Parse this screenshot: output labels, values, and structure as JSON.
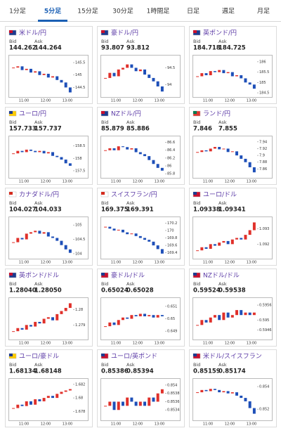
{
  "tabs": [
    "1分足",
    "5分足",
    "15分足",
    "30分足",
    "1時間足",
    "日足",
    "週足",
    "月足"
  ],
  "active_tab": 1,
  "labels": {
    "bid": "Bid",
    "ask": "Ask"
  },
  "time_labels": [
    "11:00",
    "12:00",
    "13:00"
  ],
  "cards": [
    {
      "pair": "米ドル/円",
      "bid": "144.262",
      "ask": "144.264",
      "chart": {
        "ylim": [
          144.2,
          145.7
        ],
        "yticks": [
          145.5,
          145,
          144.5
        ],
        "values": [
          145.3,
          145.35,
          145.2,
          145.25,
          145.1,
          145.15,
          145.0,
          145.05,
          144.9,
          144.95,
          144.8,
          144.7,
          144.5,
          144.3
        ]
      }
    },
    {
      "pair": "豪ドル/円",
      "bid": "93.807",
      "ask": "93.812",
      "chart": {
        "ylim": [
          93.7,
          94.8
        ],
        "yticks": [
          94.5,
          94
        ],
        "values": [
          94.2,
          94.35,
          94.25,
          94.45,
          94.5,
          94.6,
          94.5,
          94.4,
          94.45,
          94.3,
          94.2,
          94.1,
          93.95,
          93.8
        ]
      }
    },
    {
      "pair": "英ポンド/円",
      "bid": "184.718",
      "ask": "184.725",
      "chart": {
        "ylim": [
          184.4,
          186.2
        ],
        "yticks": [
          186,
          185.5,
          185,
          184.5
        ],
        "values": [
          185.3,
          185.45,
          185.35,
          185.55,
          185.5,
          185.6,
          185.45,
          185.5,
          185.3,
          185.35,
          185.2,
          185.0,
          184.9,
          184.7
        ]
      }
    },
    {
      "pair": "ユーロ/円",
      "bid": "157.733",
      "ask": "157.737",
      "chart": {
        "ylim": [
          157.3,
          158.8
        ],
        "yticks": [
          158.5,
          158,
          157.5
        ],
        "values": [
          158.2,
          158.3,
          158.25,
          158.35,
          158.3,
          158.25,
          158.3,
          158.2,
          158.25,
          158.1,
          158.05,
          157.95,
          157.8,
          157.7
        ]
      }
    },
    {
      "pair": "NZドル/円",
      "bid": "85.879",
      "ask": "85.886",
      "chart": {
        "ylim": [
          85.75,
          86.7
        ],
        "yticks": [
          86.6,
          86.4,
          86.2,
          86,
          85.8
        ],
        "values": [
          86.4,
          86.45,
          86.4,
          86.5,
          86.48,
          86.42,
          86.45,
          86.35,
          86.3,
          86.25,
          86.15,
          86.05,
          85.95,
          85.88
        ]
      }
    },
    {
      "pair": "ランド/円",
      "bid": "7.846",
      "ask": "7.855",
      "chart": {
        "ylim": [
          7.84,
          7.95
        ],
        "yticks": [
          7.94,
          7.92,
          7.9,
          7.88,
          7.86
        ],
        "values": [
          7.91,
          7.915,
          7.912,
          7.92,
          7.925,
          7.918,
          7.92,
          7.91,
          7.912,
          7.9,
          7.89,
          7.88,
          7.865,
          7.85
        ]
      }
    },
    {
      "pair": "カナダドル/円",
      "bid": "104.027",
      "ask": "104.033",
      "chart": {
        "ylim": [
          103.9,
          105.2
        ],
        "yticks": [
          105,
          104.5,
          104
        ],
        "values": [
          104.4,
          104.55,
          104.5,
          104.7,
          104.75,
          104.8,
          104.7,
          104.75,
          104.6,
          104.55,
          104.45,
          104.3,
          104.15,
          104.03
        ]
      }
    },
    {
      "pair": "スイスフラン/円",
      "bid": "169.375",
      "ask": "169.391",
      "chart": {
        "ylim": [
          169.3,
          170.3
        ],
        "yticks": [
          170.2,
          170,
          169.8,
          169.6,
          169.4
        ],
        "values": [
          170.1,
          170.05,
          170.0,
          170.02,
          169.95,
          169.9,
          169.92,
          169.85,
          169.8,
          169.75,
          169.7,
          169.6,
          169.5,
          169.38
        ]
      }
    },
    {
      "pair": "ユーロ/ドル",
      "bid": "1.09338",
      "ask": "1.09341",
      "chart": {
        "ylim": [
          1.0912,
          1.0936
        ],
        "yticks": [
          1.093,
          1.092
        ],
        "values": [
          1.0916,
          1.0918,
          1.0917,
          1.092,
          1.0919,
          1.0921,
          1.0922,
          1.092,
          1.0923,
          1.0924,
          1.0923,
          1.0926,
          1.0929,
          1.0934
        ]
      }
    },
    {
      "pair": "英ポンド/ドル",
      "bid": "1.28040",
      "ask": "1.28050",
      "chart": {
        "ylim": [
          1.2782,
          1.2806
        ],
        "yticks": [
          1.28,
          1.279
        ],
        "values": [
          1.2786,
          1.2788,
          1.2787,
          1.279,
          1.2789,
          1.2792,
          1.2791,
          1.2794,
          1.2795,
          1.2793,
          1.2797,
          1.2799,
          1.2801,
          1.2804
        ]
      }
    },
    {
      "pair": "豪ドル/ドル",
      "bid": "0.65024",
      "ask": "0.65028",
      "chart": {
        "ylim": [
          0.6485,
          0.6515
        ],
        "yticks": [
          0.651,
          0.65,
          0.649
        ],
        "values": [
          0.6494,
          0.6497,
          0.6495,
          0.6499,
          0.6501,
          0.65,
          0.6503,
          0.6502,
          0.6504,
          0.6502,
          0.6503,
          0.6501,
          0.6503,
          0.6502
        ]
      }
    },
    {
      "pair": "NZドル/ドル",
      "bid": "0.59524",
      "ask": "0.59538",
      "chart": {
        "ylim": [
          0.5943,
          0.5958
        ],
        "yticks": [
          0.5956,
          0.595,
          0.5946
        ],
        "values": [
          0.5948,
          0.595,
          0.5949,
          0.5951,
          0.5952,
          0.595,
          0.5953,
          0.5951,
          0.5952,
          0.5954,
          0.5952,
          0.5953,
          0.5952,
          0.5953
        ]
      }
    },
    {
      "pair": "ユーロ/豪ドル",
      "bid": "1.68134",
      "ask": "1.68148",
      "chart": {
        "ylim": [
          1.677,
          1.6825
        ],
        "yticks": [
          1.682,
          1.68,
          1.678
        ],
        "values": [
          1.6785,
          1.679,
          1.6788,
          1.6795,
          1.679,
          1.6798,
          1.6795,
          1.68,
          1.6803,
          1.68,
          1.6806,
          1.6809,
          1.6811,
          1.6813
        ]
      }
    },
    {
      "pair": "ユーロ/英ポンド",
      "bid": "0.85386",
      "ask": "0.85394",
      "chart": {
        "ylim": [
          0.8532,
          0.8541
        ],
        "yticks": [
          0.854,
          0.8538,
          0.8536,
          0.8534
        ],
        "values": [
          0.8535,
          0.8536,
          0.8534,
          0.8536,
          0.8535,
          0.8537,
          0.8536,
          0.8535,
          0.8536,
          0.8535,
          0.8537,
          0.8536,
          0.8538,
          0.8539
        ]
      }
    },
    {
      "pair": "米ドル/スイスフラン",
      "bid": "0.85159",
      "ask": "0.85174",
      "chart": {
        "ylim": [
          0.8512,
          0.8545
        ],
        "yticks": [
          0.854,
          0.852
        ],
        "values": [
          0.8535,
          0.8537,
          0.8536,
          0.8538,
          0.8537,
          0.8535,
          0.8536,
          0.8534,
          0.8535,
          0.8532,
          0.853,
          0.8527,
          0.8521,
          0.8516
        ]
      }
    }
  ]
}
